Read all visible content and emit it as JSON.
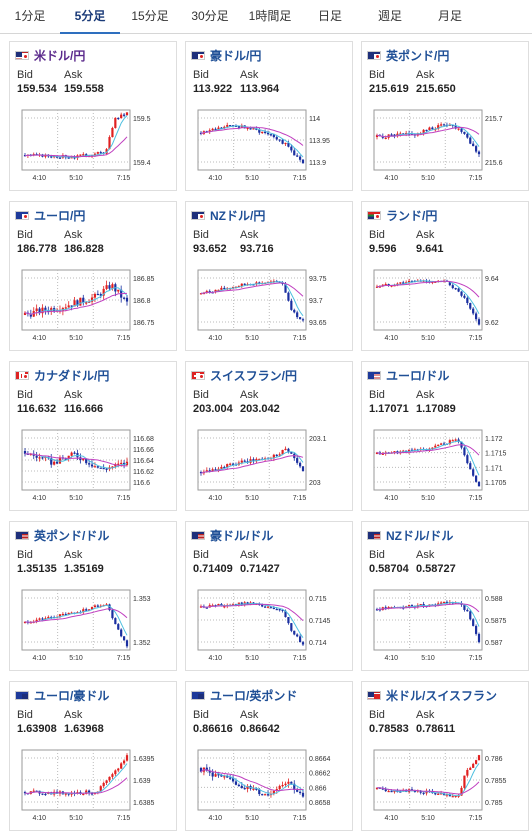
{
  "tabs": [
    {
      "label": "1分足",
      "active": false
    },
    {
      "label": "5分足",
      "active": true
    },
    {
      "label": "15分足",
      "active": false
    },
    {
      "label": "30分足",
      "active": false
    },
    {
      "label": "1時間足",
      "active": false
    },
    {
      "label": "日足",
      "active": false
    },
    {
      "label": "週足",
      "active": false
    },
    {
      "label": "月足",
      "active": false
    }
  ],
  "bid_label": "Bid",
  "ask_label": "Ask",
  "colors": {
    "up": "#e02020",
    "down": "#1a2fa0",
    "ma_short": "#4fc0e0",
    "ma_long": "#c040c0",
    "title": "#1f4f96"
  },
  "cards": [
    {
      "pair": "米ドル/円",
      "flag": "us-jp-flag",
      "bid": "159.534",
      "ask": "159.558",
      "title_color": "purple",
      "chart_data": {
        "type": "candlestick",
        "x_ticks": [
          "4:10",
          "5:10",
          "7:15"
        ],
        "y_ticks": [
          "159.5",
          "159.4"
        ]
      }
    },
    {
      "pair": "豪ドル/円",
      "flag": "au-jp-flag",
      "bid": "113.922",
      "ask": "113.964",
      "chart_data": {
        "type": "candlestick",
        "x_ticks": [
          "4:10",
          "5:10",
          "7:15"
        ],
        "y_ticks": [
          "114",
          "113.95",
          "113.9"
        ]
      }
    },
    {
      "pair": "英ポンド/円",
      "flag": "gb-jp-flag",
      "bid": "215.619",
      "ask": "215.650",
      "chart_data": {
        "type": "candlestick",
        "x_ticks": [
          "4:10",
          "5:10",
          "7:15"
        ],
        "y_ticks": [
          "215.7",
          "215.6"
        ]
      }
    },
    {
      "pair": "ユーロ/円",
      "flag": "eu-jp-flag",
      "bid": "186.778",
      "ask": "186.828",
      "chart_data": {
        "type": "candlestick",
        "x_ticks": [
          "4:10",
          "5:10",
          "7:15"
        ],
        "y_ticks": [
          "186.85",
          "186.8",
          "186.75"
        ]
      }
    },
    {
      "pair": "NZドル/円",
      "flag": "nz-jp-flag",
      "bid": "93.652",
      "ask": "93.716",
      "chart_data": {
        "type": "candlestick",
        "x_ticks": [
          "4:10",
          "5:10",
          "7:15"
        ],
        "y_ticks": [
          "93.75",
          "93.7",
          "93.65"
        ]
      }
    },
    {
      "pair": "ランド/円",
      "flag": "za-jp-flag",
      "bid": "9.596",
      "ask": "9.641",
      "chart_data": {
        "type": "candlestick",
        "x_ticks": [
          "4:10",
          "5:10",
          "7:15"
        ],
        "y_ticks": [
          "9.64",
          "9.62"
        ]
      }
    },
    {
      "pair": "カナダドル/円",
      "flag": "ca-jp-flag",
      "bid": "116.632",
      "ask": "116.666",
      "chart_data": {
        "type": "candlestick",
        "x_ticks": [
          "4:10",
          "5:10",
          "7:15"
        ],
        "y_ticks": [
          "116.68",
          "116.66",
          "116.64",
          "116.62",
          "116.6"
        ]
      }
    },
    {
      "pair": "スイスフラン/円",
      "flag": "ch-jp-flag",
      "bid": "203.004",
      "ask": "203.042",
      "chart_data": {
        "type": "candlestick",
        "x_ticks": [
          "4:10",
          "5:10",
          "7:15"
        ],
        "y_ticks": [
          "203.1",
          "203"
        ]
      }
    },
    {
      "pair": "ユーロ/ドル",
      "flag": "eu-us-flag",
      "bid": "1.17071",
      "ask": "1.17089",
      "chart_data": {
        "type": "candlestick",
        "x_ticks": [
          "4:10",
          "5:10",
          "7:15"
        ],
        "y_ticks": [
          "1.172",
          "1.1715",
          "1.171",
          "1.1705"
        ]
      }
    },
    {
      "pair": "英ポンド/ドル",
      "flag": "gb-us-flag",
      "bid": "1.35135",
      "ask": "1.35169",
      "chart_data": {
        "type": "candlestick",
        "x_ticks": [
          "4:10",
          "5:10",
          "7:15"
        ],
        "y_ticks": [
          "1.353",
          "1.352"
        ]
      }
    },
    {
      "pair": "豪ドル/ドル",
      "flag": "au-us-flag",
      "bid": "0.71409",
      "ask": "0.71427",
      "chart_data": {
        "type": "candlestick",
        "x_ticks": [
          "4:10",
          "5:10",
          "7:15"
        ],
        "y_ticks": [
          "0.715",
          "0.7145",
          "0.714"
        ]
      }
    },
    {
      "pair": "NZドル/ドル",
      "flag": "nz-us-flag",
      "bid": "0.58704",
      "ask": "0.58727",
      "chart_data": {
        "type": "candlestick",
        "x_ticks": [
          "4:10",
          "5:10",
          "7:15"
        ],
        "y_ticks": [
          "0.588",
          "0.5875",
          "0.587"
        ]
      }
    },
    {
      "pair": "ユーロ/豪ドル",
      "flag": "eu-au-flag",
      "bid": "1.63908",
      "ask": "1.63968",
      "chart_data": {
        "type": "candlestick",
        "x_ticks": [
          "4:10",
          "5:10",
          "7:15"
        ],
        "y_ticks": [
          "1.6395",
          "1.639",
          "1.6385"
        ]
      }
    },
    {
      "pair": "ユーロ/英ポンド",
      "flag": "eu-gb-flag",
      "bid": "0.86616",
      "ask": "0.86642",
      "chart_data": {
        "type": "candlestick",
        "x_ticks": [
          "4:10",
          "5:10",
          "7:15"
        ],
        "y_ticks": [
          "0.8664",
          "0.8662",
          "0.866",
          "0.8658"
        ]
      }
    },
    {
      "pair": "米ドル/スイスフラン",
      "flag": "us-ch-flag",
      "bid": "0.78583",
      "ask": "0.78611",
      "chart_data": {
        "type": "candlestick",
        "x_ticks": [
          "4:10",
          "5:10",
          "7:15"
        ],
        "y_ticks": [
          "0.786",
          "0.7855",
          "0.785"
        ]
      }
    }
  ]
}
